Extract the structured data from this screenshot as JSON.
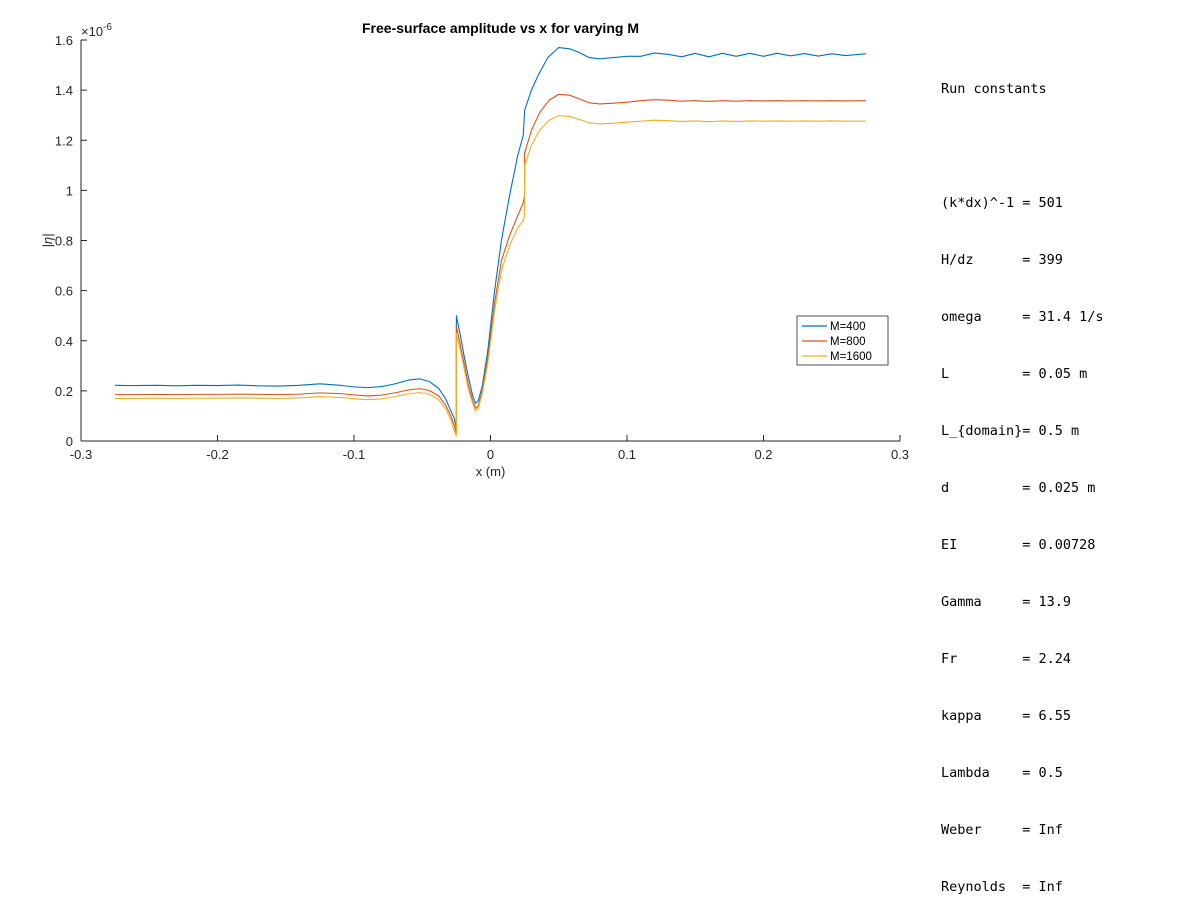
{
  "chart_data": {
    "type": "line",
    "title": "Free-surface amplitude vs x for varying M",
    "xlabel": "x (m)",
    "ylabel": "|η|",
    "y_exponent_label": "×10",
    "y_exponent_power": "-6",
    "xlim": [
      -0.3,
      0.3
    ],
    "ylim": [
      0,
      1.6
    ],
    "x_ticks": [
      -0.3,
      -0.2,
      -0.1,
      0,
      0.1,
      0.2,
      0.3
    ],
    "x_tick_labels": [
      "-0.3",
      "-0.2",
      "-0.1",
      "0",
      "0.1",
      "0.2",
      "0.3"
    ],
    "y_ticks": [
      0,
      0.2,
      0.4,
      0.6,
      0.8,
      1,
      1.2,
      1.4,
      1.6
    ],
    "y_tick_labels": [
      "0",
      "0.2",
      "0.4",
      "0.6",
      "0.8",
      "1",
      "1.2",
      "1.4",
      "1.6"
    ],
    "grid": false,
    "legend_position": "lower-right",
    "series": [
      {
        "name": "M=400",
        "color": "#0072BD",
        "points": [
          [
            -0.275,
            0.222
          ],
          [
            -0.26,
            0.221
          ],
          [
            -0.245,
            0.222
          ],
          [
            -0.23,
            0.22
          ],
          [
            -0.215,
            0.222
          ],
          [
            -0.2,
            0.221
          ],
          [
            -0.185,
            0.223
          ],
          [
            -0.17,
            0.22
          ],
          [
            -0.155,
            0.219
          ],
          [
            -0.14,
            0.222
          ],
          [
            -0.125,
            0.228
          ],
          [
            -0.11,
            0.222
          ],
          [
            -0.1,
            0.216
          ],
          [
            -0.09,
            0.213
          ],
          [
            -0.08,
            0.217
          ],
          [
            -0.07,
            0.228
          ],
          [
            -0.06,
            0.243
          ],
          [
            -0.052,
            0.248
          ],
          [
            -0.045,
            0.238
          ],
          [
            -0.038,
            0.21
          ],
          [
            -0.033,
            0.17
          ],
          [
            -0.029,
            0.12
          ],
          [
            -0.0265,
            0.09
          ],
          [
            -0.025,
            0.05
          ],
          [
            -0.025,
            0.5
          ],
          [
            -0.022,
            0.42
          ],
          [
            -0.019,
            0.33
          ],
          [
            -0.016,
            0.25
          ],
          [
            -0.013,
            0.18
          ],
          [
            -0.011,
            0.15
          ],
          [
            -0.009,
            0.16
          ],
          [
            -0.006,
            0.22
          ],
          [
            -0.002,
            0.36
          ],
          [
            0.003,
            0.6
          ],
          [
            0.008,
            0.8
          ],
          [
            0.014,
            0.98
          ],
          [
            0.02,
            1.14
          ],
          [
            0.024,
            1.22
          ],
          [
            0.025,
            1.32
          ],
          [
            0.03,
            1.4
          ],
          [
            0.035,
            1.46
          ],
          [
            0.042,
            1.53
          ],
          [
            0.05,
            1.57
          ],
          [
            0.058,
            1.565
          ],
          [
            0.065,
            1.55
          ],
          [
            0.072,
            1.53
          ],
          [
            0.08,
            1.525
          ],
          [
            0.09,
            1.53
          ],
          [
            0.1,
            1.535
          ],
          [
            0.11,
            1.535
          ],
          [
            0.12,
            1.548
          ],
          [
            0.13,
            1.543
          ],
          [
            0.14,
            1.533
          ],
          [
            0.15,
            1.547
          ],
          [
            0.16,
            1.533
          ],
          [
            0.17,
            1.547
          ],
          [
            0.18,
            1.535
          ],
          [
            0.19,
            1.547
          ],
          [
            0.2,
            1.535
          ],
          [
            0.21,
            1.547
          ],
          [
            0.22,
            1.537
          ],
          [
            0.23,
            1.546
          ],
          [
            0.24,
            1.536
          ],
          [
            0.25,
            1.545
          ],
          [
            0.26,
            1.538
          ],
          [
            0.275,
            1.545
          ]
        ]
      },
      {
        "name": "M=800",
        "color": "#D95319",
        "points": [
          [
            -0.275,
            0.185
          ],
          [
            -0.26,
            0.185
          ],
          [
            -0.245,
            0.186
          ],
          [
            -0.23,
            0.185
          ],
          [
            -0.215,
            0.186
          ],
          [
            -0.2,
            0.186
          ],
          [
            -0.185,
            0.187
          ],
          [
            -0.17,
            0.186
          ],
          [
            -0.155,
            0.185
          ],
          [
            -0.14,
            0.187
          ],
          [
            -0.125,
            0.192
          ],
          [
            -0.11,
            0.189
          ],
          [
            -0.1,
            0.184
          ],
          [
            -0.09,
            0.18
          ],
          [
            -0.08,
            0.183
          ],
          [
            -0.07,
            0.192
          ],
          [
            -0.06,
            0.204
          ],
          [
            -0.052,
            0.209
          ],
          [
            -0.045,
            0.202
          ],
          [
            -0.038,
            0.18
          ],
          [
            -0.033,
            0.145
          ],
          [
            -0.029,
            0.1
          ],
          [
            -0.0265,
            0.06
          ],
          [
            -0.025,
            0.03
          ],
          [
            -0.025,
            0.46
          ],
          [
            -0.022,
            0.38
          ],
          [
            -0.019,
            0.3
          ],
          [
            -0.016,
            0.22
          ],
          [
            -0.013,
            0.16
          ],
          [
            -0.011,
            0.13
          ],
          [
            -0.009,
            0.14
          ],
          [
            -0.006,
            0.2
          ],
          [
            -0.002,
            0.33
          ],
          [
            0.003,
            0.55
          ],
          [
            0.008,
            0.72
          ],
          [
            0.014,
            0.82
          ],
          [
            0.02,
            0.9
          ],
          [
            0.024,
            0.95
          ],
          [
            0.025,
            0.98
          ],
          [
            0.025,
            1.15
          ],
          [
            0.03,
            1.24
          ],
          [
            0.036,
            1.31
          ],
          [
            0.043,
            1.36
          ],
          [
            0.05,
            1.383
          ],
          [
            0.058,
            1.38
          ],
          [
            0.065,
            1.365
          ],
          [
            0.072,
            1.35
          ],
          [
            0.08,
            1.345
          ],
          [
            0.09,
            1.348
          ],
          [
            0.1,
            1.352
          ],
          [
            0.11,
            1.358
          ],
          [
            0.12,
            1.362
          ],
          [
            0.13,
            1.36
          ],
          [
            0.14,
            1.356
          ],
          [
            0.15,
            1.358
          ],
          [
            0.16,
            1.355
          ],
          [
            0.17,
            1.358
          ],
          [
            0.18,
            1.356
          ],
          [
            0.19,
            1.358
          ],
          [
            0.2,
            1.357
          ],
          [
            0.21,
            1.358
          ],
          [
            0.22,
            1.357
          ],
          [
            0.23,
            1.358
          ],
          [
            0.24,
            1.357
          ],
          [
            0.25,
            1.358
          ],
          [
            0.26,
            1.357
          ],
          [
            0.275,
            1.358
          ]
        ]
      },
      {
        "name": "M=1600",
        "color": "#EDB120",
        "points": [
          [
            -0.275,
            0.17
          ],
          [
            -0.26,
            0.17
          ],
          [
            -0.245,
            0.171
          ],
          [
            -0.23,
            0.17
          ],
          [
            -0.215,
            0.171
          ],
          [
            -0.2,
            0.171
          ],
          [
            -0.185,
            0.172
          ],
          [
            -0.17,
            0.171
          ],
          [
            -0.155,
            0.17
          ],
          [
            -0.14,
            0.172
          ],
          [
            -0.125,
            0.177
          ],
          [
            -0.11,
            0.174
          ],
          [
            -0.1,
            0.169
          ],
          [
            -0.09,
            0.165
          ],
          [
            -0.08,
            0.168
          ],
          [
            -0.07,
            0.177
          ],
          [
            -0.06,
            0.188
          ],
          [
            -0.052,
            0.193
          ],
          [
            -0.045,
            0.187
          ],
          [
            -0.038,
            0.165
          ],
          [
            -0.033,
            0.13
          ],
          [
            -0.029,
            0.085
          ],
          [
            -0.0265,
            0.04
          ],
          [
            -0.025,
            0.02
          ],
          [
            -0.025,
            0.43
          ],
          [
            -0.022,
            0.36
          ],
          [
            -0.019,
            0.28
          ],
          [
            -0.016,
            0.2
          ],
          [
            -0.013,
            0.15
          ],
          [
            -0.011,
            0.12
          ],
          [
            -0.009,
            0.13
          ],
          [
            -0.006,
            0.19
          ],
          [
            -0.002,
            0.31
          ],
          [
            0.003,
            0.52
          ],
          [
            0.008,
            0.68
          ],
          [
            0.014,
            0.78
          ],
          [
            0.02,
            0.85
          ],
          [
            0.024,
            0.88
          ],
          [
            0.025,
            0.9
          ],
          [
            0.025,
            1.1
          ],
          [
            0.03,
            1.18
          ],
          [
            0.036,
            1.24
          ],
          [
            0.043,
            1.28
          ],
          [
            0.05,
            1.298
          ],
          [
            0.058,
            1.295
          ],
          [
            0.065,
            1.283
          ],
          [
            0.072,
            1.27
          ],
          [
            0.08,
            1.265
          ],
          [
            0.09,
            1.268
          ],
          [
            0.1,
            1.272
          ],
          [
            0.11,
            1.276
          ],
          [
            0.12,
            1.28
          ],
          [
            0.13,
            1.278
          ],
          [
            0.14,
            1.275
          ],
          [
            0.15,
            1.277
          ],
          [
            0.16,
            1.274
          ],
          [
            0.17,
            1.277
          ],
          [
            0.18,
            1.275
          ],
          [
            0.19,
            1.277
          ],
          [
            0.2,
            1.276
          ],
          [
            0.21,
            1.277
          ],
          [
            0.22,
            1.276
          ],
          [
            0.23,
            1.277
          ],
          [
            0.24,
            1.276
          ],
          [
            0.25,
            1.277
          ],
          [
            0.26,
            1.276
          ],
          [
            0.275,
            1.276
          ]
        ]
      }
    ]
  },
  "constants": {
    "heading": "Run constants",
    "rows": [
      "(k*dx)^-1 = 501",
      "H/dz      = 399",
      "omega     = 31.4 1/s",
      "L         = 0.05 m",
      "L_{domain}= 0.5 m",
      "d         = 0.025 m",
      "EI        = 0.00728",
      "Gamma     = 13.9",
      "Fr        = 2.24",
      "kappa     = 6.55",
      "Lambda    = 0.5",
      "Weber     = Inf",
      "Reynolds  = Inf"
    ]
  }
}
